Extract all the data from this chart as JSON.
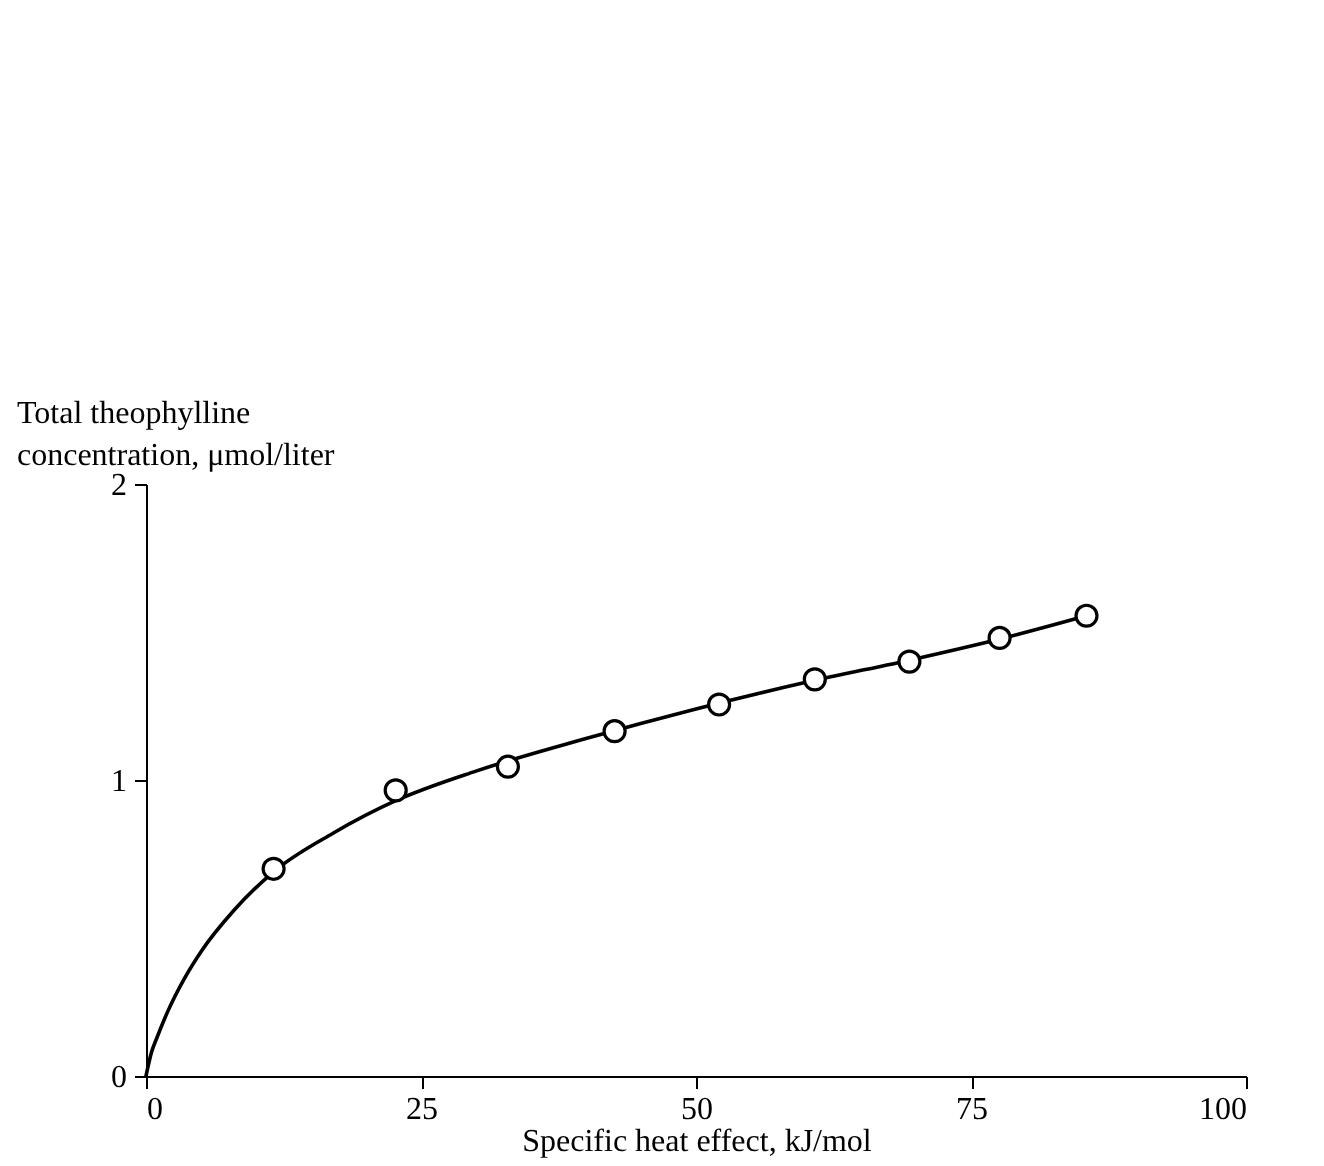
{
  "chart_data": {
    "type": "scatter",
    "xlabel": "Specific heat effect, kJ/mol",
    "ylabel": "Total theophylline concentration, μmol/liter",
    "xlim": [
      0,
      100
    ],
    "ylim": [
      0,
      2
    ],
    "xticks": [
      0,
      25,
      50,
      75,
      100
    ],
    "yticks": [
      0,
      1,
      2
    ],
    "marker": "circle",
    "series": [
      {
        "type": "scatter",
        "color": "#000000",
        "x": [
          11.6,
          22.7,
          32.9,
          42.6,
          52.1,
          60.8,
          69.4,
          77.6,
          85.5
        ],
        "values": [
          0.7,
          0.965,
          1.045,
          1.165,
          1.255,
          1.34,
          1.4,
          1.48,
          1.555
        ]
      },
      {
        "type": "line",
        "color": "#000000",
        "marker": "none",
        "x": [
          0,
          0.5,
          1,
          2,
          3.5,
          5,
          8,
          11.6,
          17,
          22.7,
          30,
          40,
          50,
          60,
          70,
          78,
          86
        ],
        "values": [
          0,
          0.08,
          0.13,
          0.22,
          0.33,
          0.42,
          0.56,
          0.69,
          0.82,
          0.93,
          1.03,
          1.14,
          1.24,
          1.33,
          1.41,
          1.48,
          1.56
        ]
      }
    ]
  }
}
